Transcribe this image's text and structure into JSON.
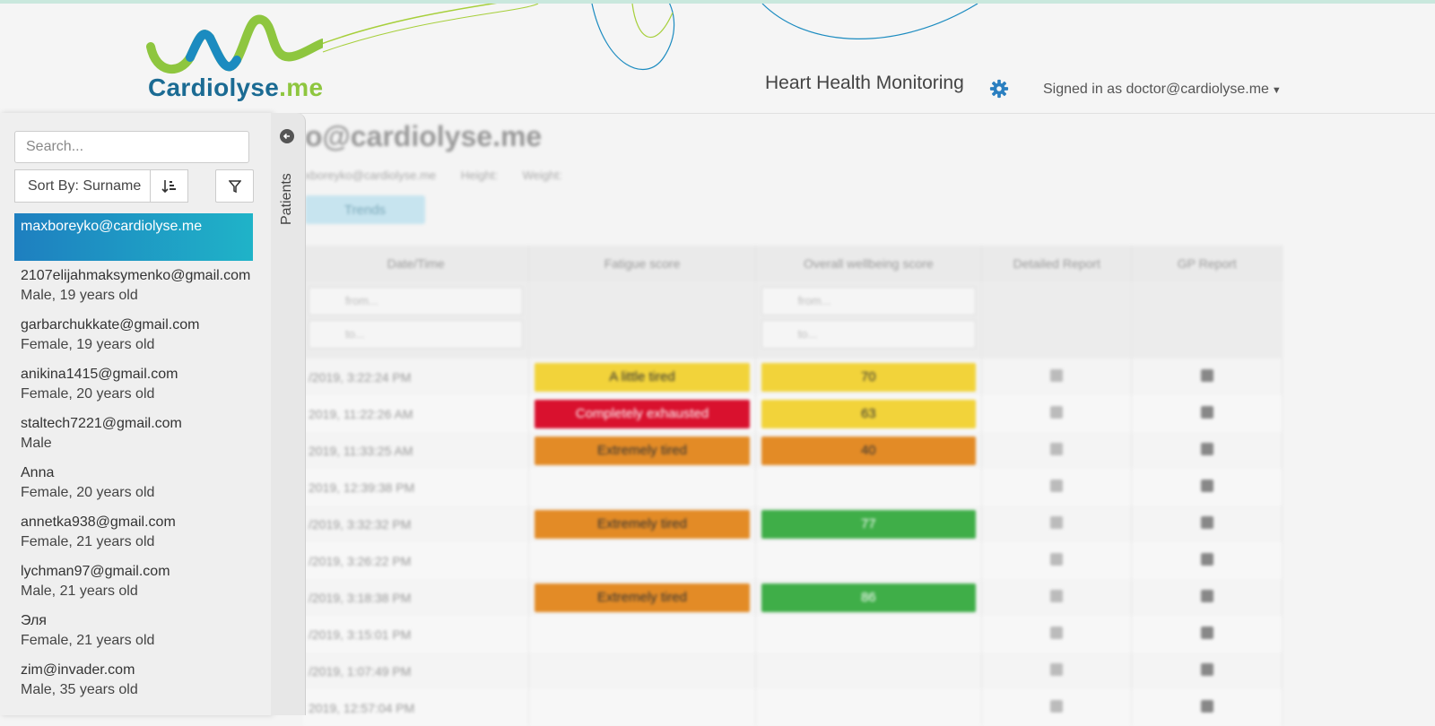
{
  "header": {
    "logo_text": "Cardiolyse",
    "logo_suffix": ".me",
    "title": "Heart Health Monitoring",
    "user_menu": "Signed in as doctor@cardiolyse.me",
    "settings_icon": "gear-icon",
    "colors": {
      "brand_blue": "#1b6b93",
      "brand_green": "#8ec63f",
      "gear": "#2a7fc0"
    }
  },
  "sidebar": {
    "search_placeholder": "Search...",
    "sort_label": "Sort By: Surname",
    "sort_direction_icon": "sort-ascending-icon",
    "filter_icon": "funnel-icon",
    "tab_label": "Patients",
    "collapse_icon": "arrow-left-circle-icon",
    "patients": [
      {
        "email": "maxboreyko@cardiolyse.me",
        "info": ""
      },
      {
        "email": "2107elijahmaksymenko@gmail.com",
        "info": "Male, 19 years old"
      },
      {
        "email": "garbarchukkate@gmail.com",
        "info": "Female, 19 years old"
      },
      {
        "email": "anikina1415@gmail.com",
        "info": "Female, 20 years old"
      },
      {
        "email": "staltech7221@gmail.com",
        "info": "Male"
      },
      {
        "email": "Anna",
        "info": "Female, 20 years old"
      },
      {
        "email": "annetka938@gmail.com",
        "info": "Female, 21 years old"
      },
      {
        "email": "lychman97@gmail.com",
        "info": "Male, 21 years old"
      },
      {
        "email": "Эля",
        "info": "Female, 21 years old"
      },
      {
        "email": "zim@invader.com",
        "info": "Male, 35 years old"
      }
    ]
  },
  "main": {
    "title": "o@cardiolyse.me",
    "sub_email": "xboreyko@cardiolyse.me",
    "sub_height": "Height:",
    "sub_weight": "Weight:",
    "trends_label": "Trends",
    "columns": [
      "Date/Time",
      "Fatigue score",
      "Overall wellbeing score",
      "Detailed Report",
      "GP Report"
    ],
    "filter_from": "from...",
    "filter_to": "to...",
    "rows": [
      {
        "date": "/2019, 3:22:24 PM",
        "fatigue": "A little tired",
        "fatigue_color": "#f2d33a",
        "wellbeing": "70",
        "wellbeing_color": "#f2d33a"
      },
      {
        "date": "2019, 11:22:26 AM",
        "fatigue": "Completely exhausted",
        "fatigue_color": "#d9112e",
        "wellbeing": "63",
        "wellbeing_color": "#f2d33a"
      },
      {
        "date": "2019, 11:33:25 AM",
        "fatigue": "Extremely tired",
        "fatigue_color": "#e38b26",
        "wellbeing": "40",
        "wellbeing_color": "#e38b26"
      },
      {
        "date": "2019, 12:39:38 PM",
        "fatigue": "",
        "fatigue_color": "",
        "wellbeing": "",
        "wellbeing_color": ""
      },
      {
        "date": "/2019, 3:32:32 PM",
        "fatigue": "Extremely tired",
        "fatigue_color": "#e38b26",
        "wellbeing": "77",
        "wellbeing_color": "#3fae48"
      },
      {
        "date": "/2019, 3:26:22 PM",
        "fatigue": "",
        "fatigue_color": "",
        "wellbeing": "",
        "wellbeing_color": ""
      },
      {
        "date": "/2019, 3:18:38 PM",
        "fatigue": "Extremely tired",
        "fatigue_color": "#e38b26",
        "wellbeing": "86",
        "wellbeing_color": "#3fae48"
      },
      {
        "date": "/2019, 3:15:01 PM",
        "fatigue": "",
        "fatigue_color": "",
        "wellbeing": "",
        "wellbeing_color": ""
      },
      {
        "date": "/2019, 1:07:49 PM",
        "fatigue": "",
        "fatigue_color": "",
        "wellbeing": "",
        "wellbeing_color": ""
      },
      {
        "date": "2019, 12:57:04 PM",
        "fatigue": "",
        "fatigue_color": "",
        "wellbeing": "",
        "wellbeing_color": ""
      }
    ]
  }
}
